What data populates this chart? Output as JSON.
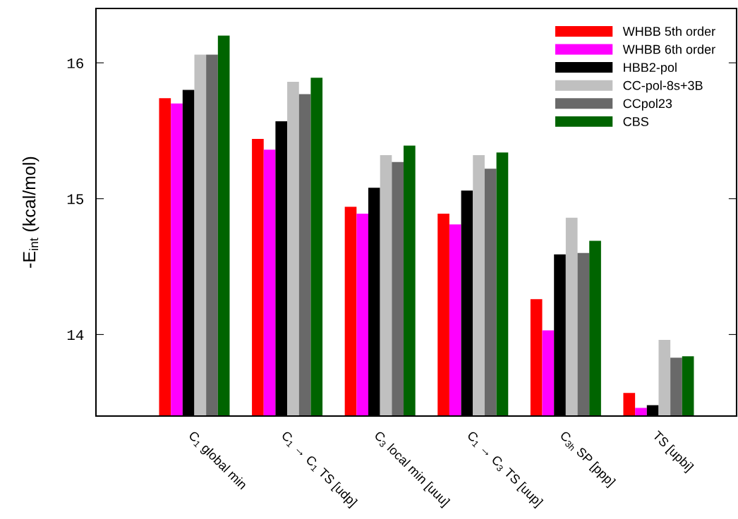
{
  "chart_data": {
    "type": "bar",
    "ylabel": "-E$_{int}$ (kcal/mol)",
    "categories": [
      "C$_{1}$ global min",
      "C$_{1}$ → C$_{1}$ TS [udp]",
      "C$_{3}$ local min [uuu]",
      "C$_{1}$ → C$_{3}$ TS [uup]",
      "C$_{3h}$ SP [ppp]",
      "TS [upbi]"
    ],
    "series": [
      {
        "name": "WHBB 5th order",
        "color": "#ff0000",
        "values": [
          15.74,
          15.44,
          14.94,
          14.89,
          14.26,
          13.57
        ]
      },
      {
        "name": "WHBB 6th order",
        "color": "#ff00ff",
        "values": [
          15.7,
          15.36,
          14.89,
          14.81,
          14.03,
          13.46
        ]
      },
      {
        "name": "HBB2-pol",
        "color": "#000000",
        "values": [
          15.8,
          15.57,
          15.08,
          15.06,
          14.59,
          13.48
        ]
      },
      {
        "name": "CC-pol-8s+3B",
        "color": "#c0c0c0",
        "values": [
          16.06,
          15.86,
          15.32,
          15.32,
          14.86,
          13.96
        ]
      },
      {
        "name": "CCpol23",
        "color": "#696969",
        "values": [
          16.06,
          15.77,
          15.27,
          15.22,
          14.6,
          13.83
        ]
      },
      {
        "name": "CBS",
        "color": "#006400",
        "values": [
          16.2,
          15.89,
          15.39,
          15.34,
          14.69,
          13.84
        ]
      }
    ],
    "ylim": [
      13.4,
      16.4
    ],
    "yticks": [
      14,
      15,
      16
    ],
    "grid": false,
    "legend": "top right"
  }
}
